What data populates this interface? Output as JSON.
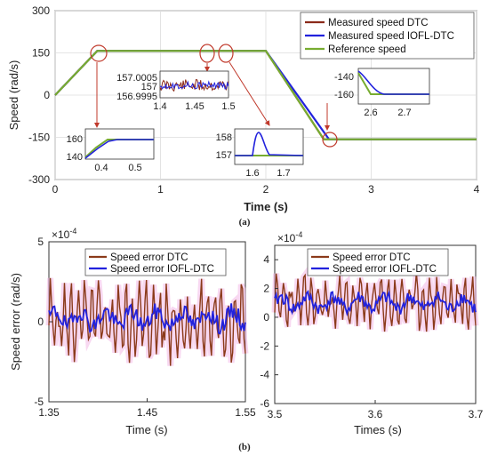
{
  "chart_data": [
    {
      "type": "line",
      "panel_label": "(a)",
      "xlabel": "Time (s)",
      "ylabel": "Speed (rad/s)",
      "xlim": [
        0,
        4
      ],
      "ylim": [
        -300,
        300
      ],
      "xticks": [
        "0",
        "1",
        "2",
        "3",
        "4"
      ],
      "yticks": [
        "-300",
        "-150",
        "0",
        "150",
        "300"
      ],
      "grid": true,
      "legend_position": "top-right",
      "series": [
        {
          "name": "Measured speed DTC",
          "color": "#8b2a1a",
          "x": [
            0,
            0.4,
            2.0,
            2.55,
            4.0
          ],
          "y": [
            0,
            157,
            157,
            -157,
            -157
          ]
        },
        {
          "name": "Measured speed IOFL-DTC",
          "color": "#2222dd",
          "x": [
            0,
            0.4,
            2.0,
            2.6,
            4.0
          ],
          "y": [
            0,
            157,
            157,
            -157,
            -157
          ]
        },
        {
          "name": "Reference speed",
          "color": "#77ac30",
          "x": [
            0,
            0.4,
            2.0,
            2.55,
            4.0
          ],
          "y": [
            0,
            157,
            157,
            -157,
            -157
          ]
        }
      ],
      "insets": [
        {
          "yticks": [
            "157.0005",
            "157",
            "156.9995"
          ],
          "xticks": [
            "1.4",
            "1.45",
            "1.5"
          ]
        },
        {
          "yticks": [
            "160",
            "140"
          ],
          "xticks": [
            "0.4",
            "0.5"
          ]
        },
        {
          "yticks": [
            "158",
            "157"
          ],
          "xticks": [
            "1.6",
            "1.7"
          ]
        },
        {
          "yticks": [
            "-140",
            "-160"
          ],
          "xticks": [
            "2.6",
            "2.7"
          ]
        }
      ]
    },
    {
      "type": "line",
      "panel_label": "(b)",
      "xlabel": "Time (s)",
      "ylabel": "Speed error (rad/s)",
      "exponent_label": "×10",
      "exponent_power": "-4",
      "xlim": [
        1.35,
        1.55
      ],
      "ylim": [
        -5,
        5
      ],
      "xticks": [
        "1.35",
        "1.45",
        "1.55"
      ],
      "yticks": [
        "5",
        "0",
        "-5"
      ],
      "legend_position": "top-left",
      "series": [
        {
          "name": "Speed error DTC",
          "color": "#8b3a1a",
          "amplitude": 2.8,
          "mean": 0
        },
        {
          "name": "Speed error IOFL-DTC",
          "color": "#2222dd",
          "amplitude": 0.9,
          "mean": 0.2
        }
      ]
    },
    {
      "type": "line",
      "xlabel": "Times (s)",
      "ylabel": "",
      "exponent_label": "×10",
      "exponent_power": "-4",
      "xlim": [
        3.5,
        3.7
      ],
      "ylim": [
        -6,
        5
      ],
      "xticks": [
        "3.5",
        "3.6",
        "3.7"
      ],
      "yticks": [
        "4",
        "2",
        "0",
        "-2",
        "-4",
        "-6"
      ],
      "legend_position": "top",
      "series": [
        {
          "name": "Speed error DTC",
          "color": "#8b3a1a",
          "amplitude": 2.0,
          "mean": 1.0
        },
        {
          "name": "Speed error IOFL-DTC",
          "color": "#2222dd",
          "amplitude": 0.8,
          "mean": 1.0
        }
      ]
    }
  ]
}
